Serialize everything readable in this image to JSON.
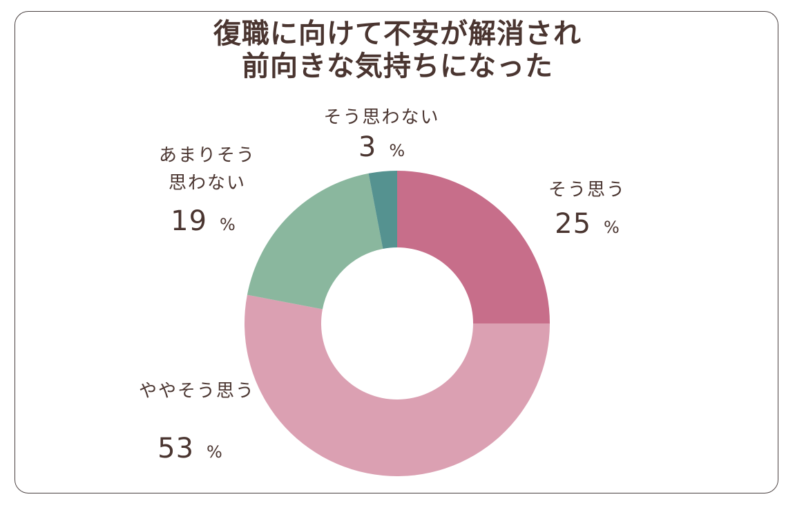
{
  "title_lines": [
    "復職に向けて不安が解消され",
    "前向きな気持ちになった"
  ],
  "chart_data": {
    "type": "donut",
    "unit": "%",
    "slices": [
      {
        "label": "そう思う",
        "value": 25,
        "color": "#c76e8a"
      },
      {
        "label": "ややそう思う",
        "value": 53,
        "color": "#dba0b2"
      },
      {
        "label": "あまりそう\n思わない",
        "value": 19,
        "color": "#8ab79e"
      },
      {
        "label": "そう思わない",
        "value": 3,
        "color": "#559290"
      }
    ]
  }
}
